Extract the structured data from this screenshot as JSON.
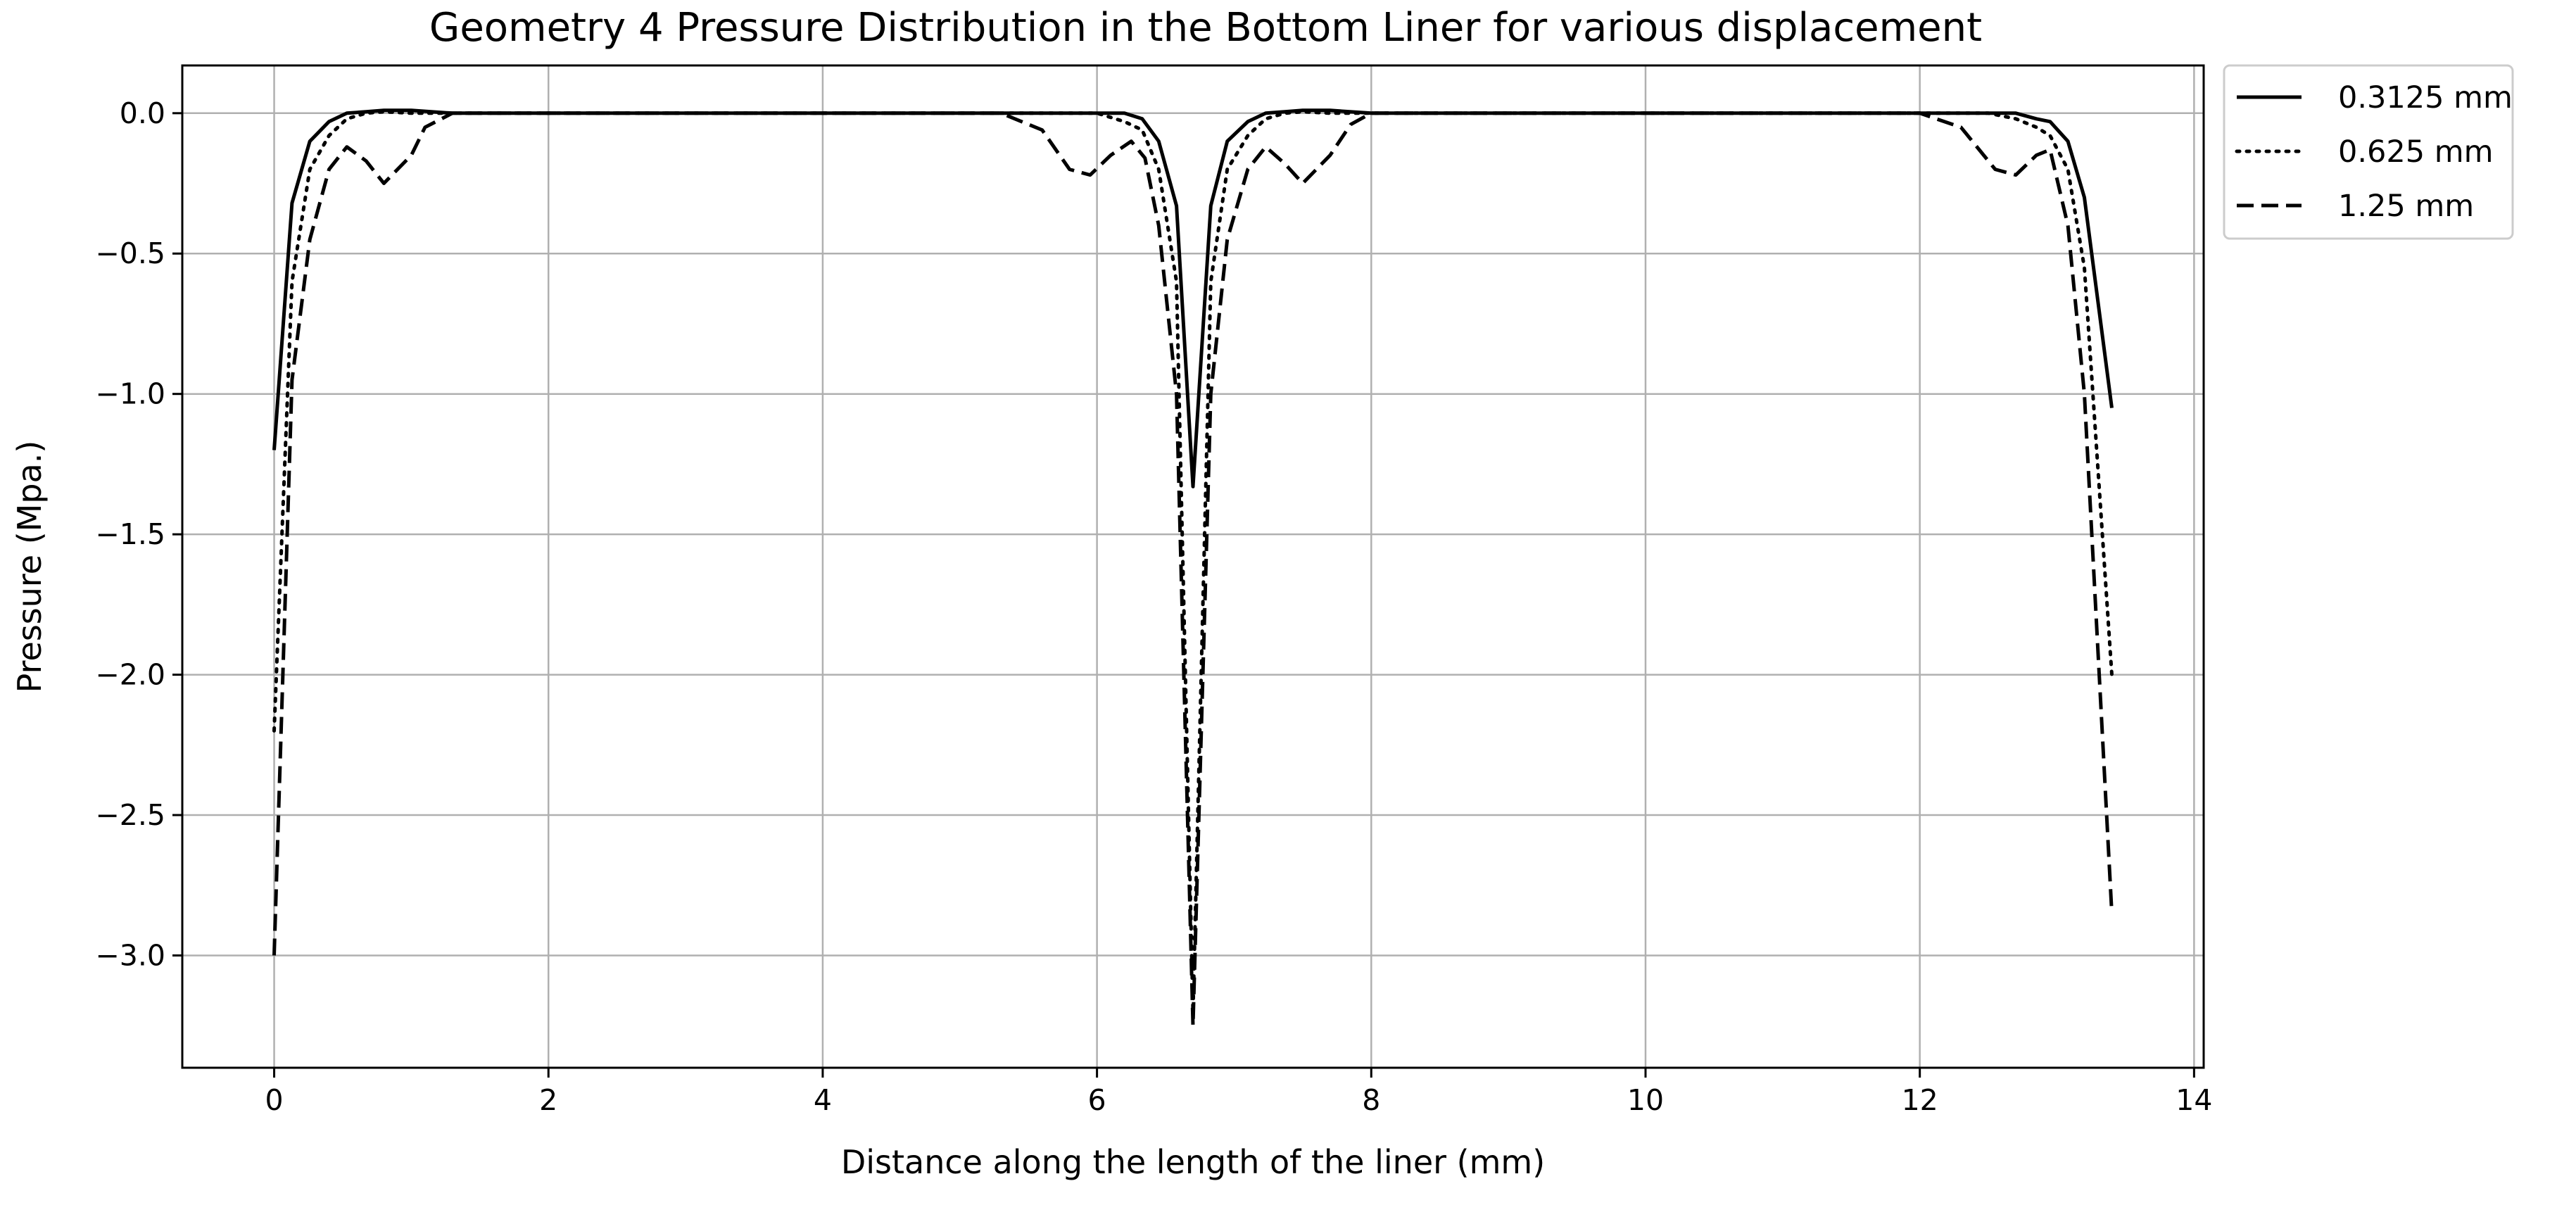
{
  "chart_data": {
    "type": "line",
    "title": "Geometry 4 Pressure Distribution in the Bottom Liner for various displacement",
    "xlabel": "Distance along the length of the liner (mm)",
    "ylabel": "Pressure (Mpa.)",
    "xlim": [
      -0.67,
      14.07
    ],
    "ylim": [
      -3.4,
      0.17
    ],
    "xticks": [
      0,
      2,
      4,
      6,
      8,
      10,
      12,
      14
    ],
    "yticks": [
      0.0,
      -0.5,
      -1.0,
      -1.5,
      -2.0,
      -2.5,
      -3.0
    ],
    "xtick_labels": [
      "0",
      "2",
      "4",
      "6",
      "8",
      "10",
      "12",
      "14"
    ],
    "ytick_labels": [
      "0.0",
      "−0.5",
      "−1.0",
      "−1.5",
      "−2.0",
      "−2.5",
      "−3.0"
    ],
    "grid": true,
    "legend_position": "outside-top-right",
    "series": [
      {
        "name": "0.3125 mm",
        "style": "solid",
        "color": "#000000",
        "x": [
          0,
          0.13,
          0.26,
          0.4,
          0.53,
          0.67,
          0.8,
          1.0,
          1.3,
          2.0,
          4.0,
          5.5,
          6.0,
          6.2,
          6.33,
          6.45,
          6.58,
          6.7,
          6.83,
          6.95,
          7.1,
          7.23,
          7.37,
          7.5,
          7.7,
          8.0,
          10.0,
          12.0,
          12.5,
          12.7,
          12.85,
          12.95,
          13.08,
          13.2,
          13.4
        ],
        "y": [
          -1.2,
          -0.32,
          -0.1,
          -0.03,
          0.0,
          0.005,
          0.01,
          0.01,
          0.0,
          0.0,
          0.0,
          0.0,
          0.0,
          0.0,
          -0.02,
          -0.1,
          -0.33,
          -1.33,
          -0.33,
          -0.1,
          -0.03,
          0.0,
          0.005,
          0.01,
          0.01,
          0.0,
          0.0,
          0.0,
          0.0,
          0.0,
          -0.02,
          -0.03,
          -0.1,
          -0.3,
          -1.05
        ]
      },
      {
        "name": "0.625 mm",
        "style": "dotted",
        "color": "#000000",
        "x": [
          0,
          0.13,
          0.26,
          0.4,
          0.53,
          0.67,
          0.8,
          1.0,
          1.3,
          2.0,
          4.0,
          5.5,
          6.0,
          6.2,
          6.33,
          6.45,
          6.58,
          6.7,
          6.83,
          6.95,
          7.1,
          7.23,
          7.37,
          7.5,
          7.7,
          8.0,
          10.0,
          12.0,
          12.5,
          12.7,
          12.85,
          12.95,
          13.08,
          13.2,
          13.4
        ],
        "y": [
          -2.2,
          -0.6,
          -0.2,
          -0.08,
          -0.02,
          0.0,
          0.005,
          0.0,
          0.0,
          0.0,
          0.0,
          0.0,
          0.0,
          -0.03,
          -0.06,
          -0.2,
          -0.6,
          -3.2,
          -0.6,
          -0.2,
          -0.08,
          -0.02,
          0.0,
          0.005,
          0.0,
          0.0,
          0.0,
          0.0,
          0.0,
          -0.02,
          -0.05,
          -0.08,
          -0.2,
          -0.55,
          -2.0
        ]
      },
      {
        "name": "1.25 mm",
        "style": "dashed",
        "color": "#000000",
        "x": [
          0,
          0.13,
          0.26,
          0.4,
          0.53,
          0.67,
          0.8,
          1.0,
          1.1,
          1.3,
          2.0,
          4.0,
          5.3,
          5.6,
          5.8,
          5.95,
          6.1,
          6.25,
          6.35,
          6.45,
          6.58,
          6.7,
          6.83,
          6.95,
          7.1,
          7.23,
          7.37,
          7.5,
          7.7,
          7.85,
          8.0,
          10.0,
          12.0,
          12.3,
          12.55,
          12.7,
          12.85,
          12.95,
          13.08,
          13.2,
          13.4
        ],
        "y": [
          -3.0,
          -0.95,
          -0.45,
          -0.2,
          -0.12,
          -0.17,
          -0.25,
          -0.15,
          -0.05,
          0.0,
          0.0,
          0.0,
          0.0,
          -0.06,
          -0.2,
          -0.22,
          -0.15,
          -0.1,
          -0.16,
          -0.4,
          -1.0,
          -3.25,
          -1.0,
          -0.45,
          -0.2,
          -0.12,
          -0.18,
          -0.25,
          -0.15,
          -0.04,
          0.0,
          0.0,
          0.0,
          -0.05,
          -0.2,
          -0.22,
          -0.15,
          -0.13,
          -0.4,
          -1.0,
          -2.85
        ]
      }
    ]
  }
}
